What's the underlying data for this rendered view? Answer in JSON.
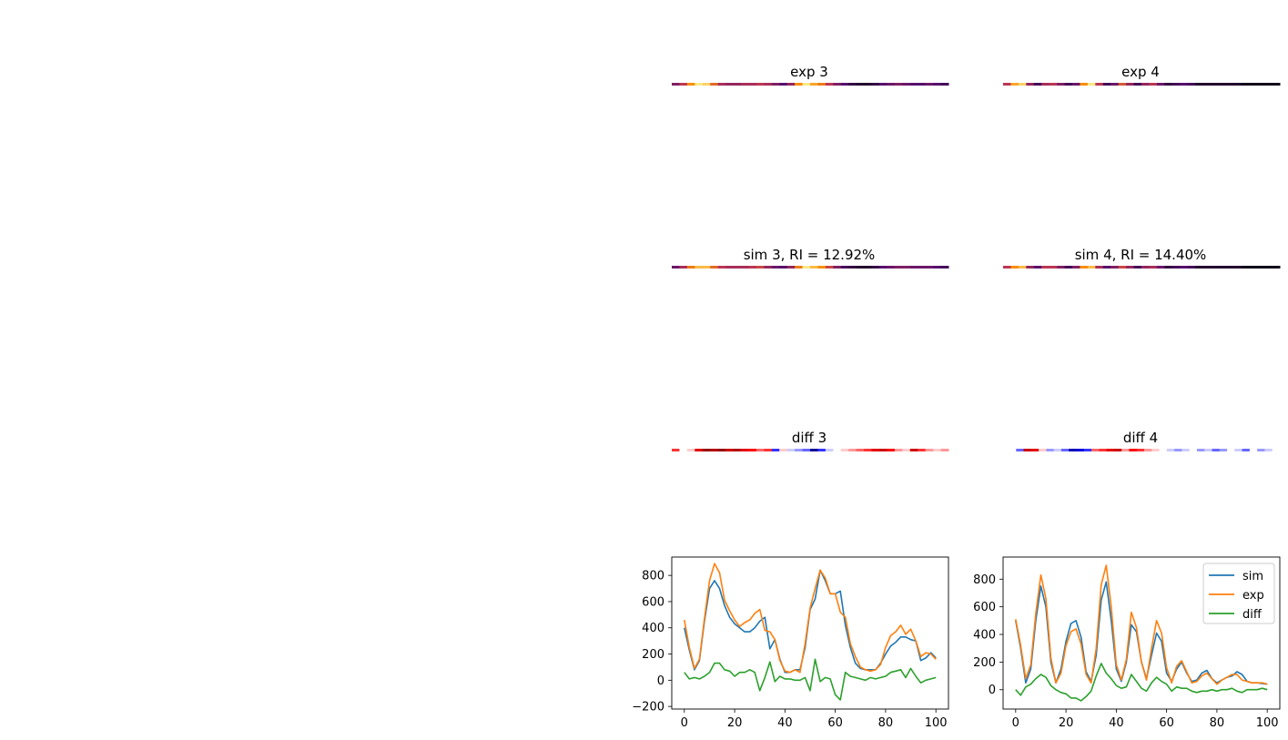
{
  "colors": {
    "sim": "#1f77b4",
    "exp": "#ff7f0e",
    "diff": "#2ca02c"
  },
  "heatmaps": [
    {
      "title": "exp 3",
      "colormap": "inferno",
      "key": "exp3"
    },
    {
      "title": "exp 4",
      "colormap": "inferno",
      "key": "exp4"
    },
    {
      "title": "sim 3, RI = 12.92%",
      "colormap": "inferno",
      "key": "sim3"
    },
    {
      "title": "sim 4, RI = 14.40%",
      "colormap": "inferno",
      "key": "sim4"
    },
    {
      "title": "diff 3",
      "colormap": "seismic",
      "key": "diff3"
    },
    {
      "title": "diff 4",
      "colormap": "seismic",
      "key": "diff4"
    }
  ],
  "chart_data": [
    {
      "type": "line",
      "title": "",
      "xlim": [
        -5,
        105
      ],
      "ylim": [
        -220,
        940
      ],
      "xticks": [
        0,
        20,
        40,
        60,
        80,
        100
      ],
      "yticks": [
        -200,
        0,
        200,
        400,
        600,
        800
      ],
      "legend": null,
      "series": [
        {
          "name": "sim",
          "color": "#1f77b4",
          "x": [
            0,
            2,
            4,
            6,
            8,
            10,
            12,
            14,
            16,
            18,
            20,
            22,
            24,
            26,
            28,
            30,
            32,
            34,
            36,
            38,
            40,
            42,
            44,
            46,
            48,
            50,
            52,
            54,
            56,
            58,
            60,
            62,
            64,
            66,
            68,
            70,
            72,
            74,
            76,
            78,
            80,
            82,
            84,
            86,
            88,
            90,
            92,
            94,
            96,
            98,
            100
          ],
          "y": [
            400,
            230,
            80,
            150,
            450,
            700,
            760,
            700,
            570,
            480,
            430,
            400,
            370,
            370,
            400,
            450,
            480,
            240,
            310,
            160,
            60,
            60,
            80,
            80,
            250,
            540,
            620,
            840,
            760,
            660,
            660,
            680,
            420,
            250,
            130,
            90,
            80,
            80,
            80,
            130,
            200,
            260,
            290,
            330,
            330,
            310,
            300,
            150,
            170,
            210,
            170
          ]
        },
        {
          "name": "exp",
          "color": "#ff7f0e",
          "x": [
            0,
            2,
            4,
            6,
            8,
            10,
            12,
            14,
            16,
            18,
            20,
            22,
            24,
            26,
            28,
            30,
            32,
            34,
            36,
            38,
            40,
            42,
            44,
            46,
            48,
            50,
            52,
            54,
            56,
            58,
            60,
            62,
            64,
            66,
            68,
            70,
            72,
            74,
            76,
            78,
            80,
            82,
            84,
            86,
            88,
            90,
            92,
            94,
            96,
            98,
            100
          ],
          "y": [
            460,
            250,
            90,
            160,
            470,
            760,
            890,
            820,
            610,
            530,
            460,
            410,
            440,
            460,
            510,
            540,
            380,
            370,
            310,
            150,
            70,
            60,
            80,
            60,
            280,
            550,
            700,
            840,
            780,
            660,
            660,
            520,
            480,
            280,
            180,
            100,
            80,
            70,
            80,
            120,
            250,
            340,
            370,
            420,
            350,
            390,
            300,
            180,
            210,
            200,
            160
          ]
        },
        {
          "name": "diff",
          "color": "#2ca02c",
          "x": [
            0,
            2,
            4,
            6,
            8,
            10,
            12,
            14,
            16,
            18,
            20,
            22,
            24,
            26,
            28,
            30,
            32,
            34,
            36,
            38,
            40,
            42,
            44,
            46,
            48,
            50,
            52,
            54,
            56,
            58,
            60,
            62,
            64,
            66,
            68,
            70,
            72,
            74,
            76,
            78,
            80,
            82,
            84,
            86,
            88,
            90,
            92,
            94,
            96,
            98,
            100
          ],
          "y": [
            60,
            10,
            20,
            10,
            30,
            60,
            130,
            130,
            80,
            70,
            30,
            60,
            60,
            80,
            60,
            -80,
            20,
            140,
            -10,
            30,
            10,
            10,
            0,
            0,
            20,
            -80,
            160,
            -10,
            20,
            10,
            -110,
            -150,
            60,
            30,
            20,
            10,
            0,
            20,
            10,
            20,
            30,
            60,
            70,
            80,
            20,
            90,
            30,
            -20,
            0,
            10,
            20
          ]
        }
      ]
    },
    {
      "type": "line",
      "title": "",
      "xlim": [
        -5,
        105
      ],
      "ylim": [
        -140,
        960
      ],
      "xticks": [
        0,
        20,
        40,
        60,
        80,
        100
      ],
      "yticks": [
        0,
        200,
        400,
        600,
        800
      ],
      "legend": "top-right",
      "series": [
        {
          "name": "sim",
          "color": "#1f77b4",
          "x": [
            0,
            2,
            4,
            6,
            8,
            10,
            12,
            14,
            16,
            18,
            20,
            22,
            24,
            26,
            28,
            30,
            32,
            34,
            36,
            38,
            40,
            42,
            44,
            46,
            48,
            50,
            52,
            54,
            56,
            58,
            60,
            62,
            64,
            66,
            68,
            70,
            72,
            74,
            76,
            78,
            80,
            82,
            84,
            86,
            88,
            90,
            92,
            94,
            96,
            98,
            100
          ],
          "y": [
            500,
            300,
            50,
            150,
            500,
            750,
            600,
            200,
            50,
            150,
            350,
            480,
            500,
            380,
            130,
            60,
            250,
            650,
            780,
            500,
            150,
            60,
            200,
            470,
            420,
            200,
            80,
            250,
            410,
            350,
            120,
            60,
            150,
            200,
            120,
            60,
            70,
            120,
            140,
            80,
            50,
            70,
            90,
            100,
            130,
            110,
            60,
            50,
            50,
            45,
            40
          ]
        },
        {
          "name": "exp",
          "color": "#ff7f0e",
          "x": [
            0,
            2,
            4,
            6,
            8,
            10,
            12,
            14,
            16,
            18,
            20,
            22,
            24,
            26,
            28,
            30,
            32,
            34,
            36,
            38,
            40,
            42,
            44,
            46,
            48,
            50,
            52,
            54,
            56,
            58,
            60,
            62,
            64,
            66,
            68,
            70,
            72,
            74,
            76,
            78,
            80,
            82,
            84,
            86,
            88,
            90,
            92,
            94,
            96,
            98,
            100
          ],
          "y": [
            510,
            320,
            80,
            180,
            550,
            830,
            660,
            230,
            50,
            120,
            320,
            420,
            440,
            330,
            110,
            50,
            300,
            760,
            900,
            600,
            180,
            70,
            220,
            560,
            450,
            200,
            70,
            300,
            500,
            410,
            160,
            50,
            170,
            210,
            130,
            50,
            60,
            100,
            120,
            80,
            40,
            70,
            90,
            110,
            110,
            70,
            60,
            50,
            50,
            50,
            40
          ]
        },
        {
          "name": "diff",
          "color": "#2ca02c",
          "x": [
            0,
            2,
            4,
            6,
            8,
            10,
            12,
            14,
            16,
            18,
            20,
            22,
            24,
            26,
            28,
            30,
            32,
            34,
            36,
            38,
            40,
            42,
            44,
            46,
            48,
            50,
            52,
            54,
            56,
            58,
            60,
            62,
            64,
            66,
            68,
            70,
            72,
            74,
            76,
            78,
            80,
            82,
            84,
            86,
            88,
            90,
            92,
            94,
            96,
            98,
            100
          ],
          "y": [
            0,
            -40,
            20,
            40,
            80,
            110,
            90,
            30,
            0,
            -20,
            -30,
            -60,
            -60,
            -80,
            -50,
            -10,
            100,
            190,
            120,
            80,
            30,
            10,
            20,
            110,
            60,
            10,
            -10,
            50,
            90,
            60,
            40,
            -10,
            20,
            10,
            10,
            -10,
            -20,
            -10,
            -10,
            0,
            -10,
            0,
            0,
            10,
            -10,
            -20,
            0,
            0,
            0,
            10,
            0
          ]
        }
      ]
    }
  ],
  "heat_values": {
    "exp3": [
      0.35,
      0.5,
      0.75,
      0.95,
      0.9,
      0.65,
      0.45,
      0.4,
      0.4,
      0.45,
      0.45,
      0.5,
      0.45,
      0.35,
      0.25,
      0.4,
      0.75,
      0.95,
      0.8,
      0.7,
      0.5,
      0.35,
      0.25,
      0.15,
      0.1,
      0.1,
      0.15,
      0.25,
      0.3,
      0.35,
      0.3,
      0.25,
      0.25,
      0.3,
      0.25,
      0.2
    ],
    "exp4": [
      0.5,
      0.8,
      0.9,
      0.4,
      0.2,
      0.45,
      0.5,
      0.35,
      0.2,
      0.3,
      0.75,
      0.95,
      0.5,
      0.2,
      0.3,
      0.6,
      0.4,
      0.2,
      0.4,
      0.5,
      0.3,
      0.15,
      0.2,
      0.25,
      0.2,
      0.1,
      0.1,
      0.1,
      0.1,
      0.1,
      0.1,
      0.05,
      0.05,
      0.05,
      0.05,
      0.05
    ],
    "sim3": [
      0.3,
      0.45,
      0.7,
      0.85,
      0.85,
      0.65,
      0.5,
      0.45,
      0.45,
      0.45,
      0.5,
      0.55,
      0.4,
      0.3,
      0.25,
      0.4,
      0.7,
      0.95,
      0.85,
      0.75,
      0.55,
      0.35,
      0.2,
      0.15,
      0.1,
      0.1,
      0.15,
      0.25,
      0.3,
      0.35,
      0.35,
      0.3,
      0.3,
      0.3,
      0.25,
      0.2
    ],
    "sim4": [
      0.5,
      0.75,
      0.85,
      0.4,
      0.25,
      0.5,
      0.5,
      0.35,
      0.2,
      0.35,
      0.75,
      0.85,
      0.45,
      0.25,
      0.35,
      0.55,
      0.4,
      0.2,
      0.4,
      0.45,
      0.3,
      0.15,
      0.2,
      0.25,
      0.2,
      0.1,
      0.1,
      0.1,
      0.1,
      0.1,
      0.1,
      0.05,
      0.05,
      0.05,
      0.05,
      0.05
    ],
    "diff3": [
      0.7,
      0.5,
      0.55,
      0.8,
      0.95,
      0.9,
      0.95,
      0.85,
      0.9,
      0.8,
      0.75,
      0.65,
      0.7,
      0.3,
      0.55,
      0.45,
      0.4,
      0.35,
      0.1,
      0.3,
      0.45,
      0.5,
      0.55,
      0.6,
      0.65,
      0.7,
      0.8,
      0.85,
      0.75,
      0.6,
      0.55,
      0.85,
      0.7,
      0.6,
      0.55,
      0.6
    ],
    "diff4": [
      0.5,
      0.35,
      0.85,
      0.8,
      0.55,
      0.4,
      0.45,
      0.35,
      0.15,
      0.2,
      0.3,
      0.65,
      0.7,
      0.8,
      0.85,
      0.6,
      0.75,
      0.7,
      0.6,
      0.55,
      0.5,
      0.45,
      0.4,
      0.45,
      0.5,
      0.4,
      0.45,
      0.35,
      0.4,
      0.5,
      0.45,
      0.35,
      0.5,
      0.4,
      0.45,
      0.5
    ]
  }
}
